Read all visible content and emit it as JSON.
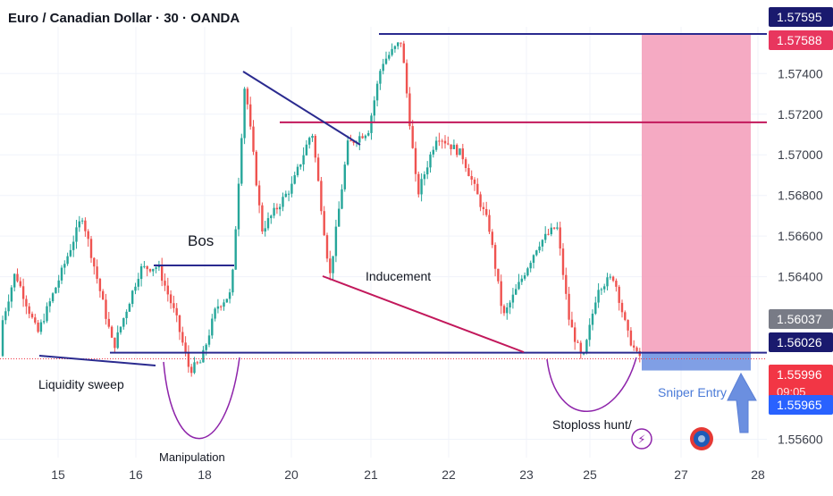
{
  "header": {
    "title": "Euro / Canadian Dollar · 30 · OANDA"
  },
  "colors": {
    "up": "#26a69a",
    "down": "#ef5350",
    "navy": "#2a2a8f",
    "crimson": "#c2185b",
    "target_zone": "#f4a1bc",
    "stop_zone": "#6a8ee0",
    "grid": "#f0f3fa",
    "text": "#131722",
    "axis_text": "#3b3f4a"
  },
  "chart_data": {
    "type": "candlestick",
    "symbol": "Euro / Canadian Dollar",
    "interval": "30",
    "source": "OANDA",
    "price_axis": {
      "ticks": [
        "1.57400",
        "1.57200",
        "1.57000",
        "1.56800",
        "1.56600",
        "1.56400",
        "1.55600"
      ],
      "ylim": [
        1.5551,
        1.5763
      ]
    },
    "time_axis": {
      "ticks": [
        "15",
        "16",
        "18",
        "20",
        "21",
        "22",
        "23",
        "25",
        "27",
        "28"
      ]
    },
    "price_labels": [
      {
        "value": "1.57595",
        "level": 1.57595,
        "color": "#1a1a6e"
      },
      {
        "value": "1.57588",
        "level": 1.57588,
        "color": "#e8365e"
      },
      {
        "value": "1.56037",
        "level": 1.56037,
        "color": "#787b86"
      },
      {
        "value": "1.56026",
        "level": 1.56026,
        "color": "#1a1a6e"
      },
      {
        "value": "1.55996",
        "level": 1.55996,
        "color": "#f23645",
        "sub": "09:05"
      },
      {
        "value": "1.55965",
        "level": 1.55965,
        "color": "#2962ff"
      }
    ],
    "horizontal_levels": [
      {
        "name": "top-resistance",
        "price": 1.57595,
        "color": "#2a2a8f"
      },
      {
        "name": "mid-resistance",
        "price": 1.5716,
        "color": "#c2185b"
      },
      {
        "name": "support-base",
        "price": 1.56026,
        "color": "#2a2a8f"
      }
    ],
    "long_position": {
      "entry": 1.56026,
      "target": 1.57595,
      "stop": 1.55965
    },
    "annotations": [
      "Bos",
      "Inducement",
      "Liquidity sweep",
      "Stoploss hunt/",
      "Sniper Entry",
      "Manipulation"
    ]
  }
}
